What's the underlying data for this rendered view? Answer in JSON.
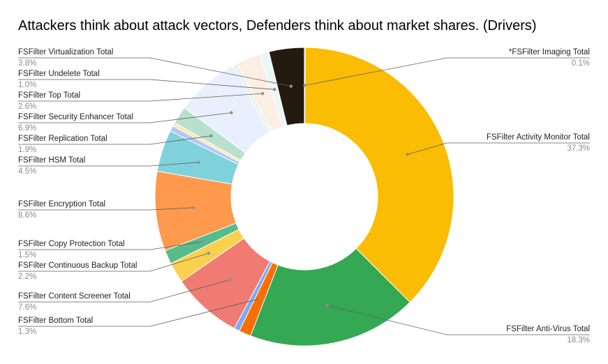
{
  "chart_data": {
    "type": "pie",
    "title": "Attackers think about attack vectors, Defenders think about market shares. (Drivers)",
    "legend": "none",
    "slices": [
      {
        "label": "*FSFilter Imaging Total",
        "value": 0.1,
        "pct_label": "0.1%",
        "color": "#999999"
      },
      {
        "label": "FSFilter Activity Monitor Total",
        "value": 37.3,
        "pct_label": "37.3%",
        "color": "#fbbc04"
      },
      {
        "label": "FSFilter Anti-Virus Total",
        "value": 18.3,
        "pct_label": "18.3%",
        "color": "#34a853"
      },
      {
        "label": "FSFilter Bottom Total",
        "value": 1.3,
        "pct_label": "1.3%",
        "color": "#ff6d01"
      },
      {
        "label": "",
        "value": 0.6,
        "pct_label": "",
        "color": "#7baaf7"
      },
      {
        "label": "FSFilter Content Screener Total",
        "value": 7.6,
        "pct_label": "7.6%",
        "color": "#f07b72"
      },
      {
        "label": "FSFilter Continuous Backup Total",
        "value": 2.2,
        "pct_label": "2.2%",
        "color": "#fcd04f"
      },
      {
        "label": "FSFilter Copy Protection Total",
        "value": 1.5,
        "pct_label": "1.5%",
        "color": "#57bb8a"
      },
      {
        "label": "FSFilter Encryption Total",
        "value": 8.6,
        "pct_label": "8.6%",
        "color": "#ff994d"
      },
      {
        "label": "FSFilter HSM Total",
        "value": 4.5,
        "pct_label": "4.5%",
        "color": "#7fd2db"
      },
      {
        "label": "",
        "value": 0.6,
        "pct_label": "",
        "color": "#b3c8f5"
      },
      {
        "label": "",
        "value": 0.4,
        "pct_label": "",
        "color": "#fce8b2"
      },
      {
        "label": "FSFilter Replication Total",
        "value": 1.9,
        "pct_label": "1.9%",
        "color": "#b7e1cd"
      },
      {
        "label": "FSFilter Security Enhancer Total",
        "value": 6.9,
        "pct_label": "6.9%",
        "color": "#e8f0fe"
      },
      {
        "label": "",
        "value": 0.5,
        "pct_label": "",
        "color": "#e6f4ea"
      },
      {
        "label": "FSFilter Top Total",
        "value": 2.6,
        "pct_label": "2.6%",
        "color": "#fdeee4"
      },
      {
        "label": "FSFilter Undelete Total",
        "value": 1.0,
        "pct_label": "1.0%",
        "color": "#e9f7f9"
      },
      {
        "label": "FSFilter Virtualization Total",
        "value": 3.8,
        "pct_label": "3.8%",
        "color": "#231a10"
      }
    ]
  }
}
